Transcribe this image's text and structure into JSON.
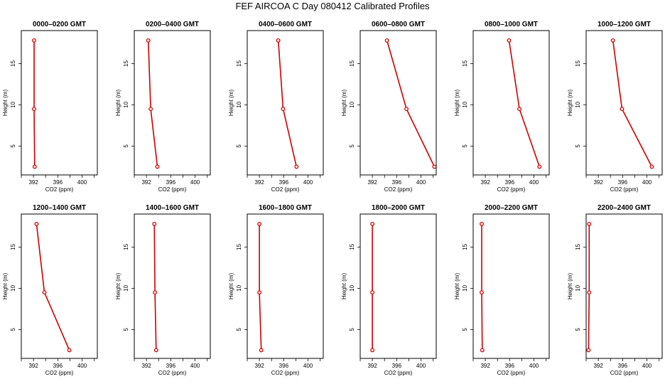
{
  "title": "FEF AIRCOA C  Day 080412  Calibrated Profiles",
  "colors": {
    "profile": "#cc0000",
    "axis": "#000000"
  },
  "chart_data": [
    {
      "type": "line",
      "title": "0000–0200 GMT",
      "xlabel": "CO2 (ppm)",
      "ylabel": "Height (m)",
      "xlim": [
        390,
        402.5
      ],
      "ylim": [
        1.5,
        19
      ],
      "xticks": [
        392,
        396,
        400
      ],
      "yticks": [
        5,
        10,
        15
      ],
      "x": [
        392.1,
        392.1,
        392.2
      ],
      "y": [
        17.8,
        9.5,
        2.5
      ]
    },
    {
      "type": "line",
      "title": "0200–0400 GMT",
      "xlabel": "CO2 (ppm)",
      "ylabel": "Height (m)",
      "xlim": [
        390,
        402.5
      ],
      "ylim": [
        1.5,
        19
      ],
      "xticks": [
        392,
        396,
        400
      ],
      "yticks": [
        5,
        10,
        15
      ],
      "x": [
        392.3,
        392.7,
        393.8
      ],
      "y": [
        17.8,
        9.5,
        2.5
      ]
    },
    {
      "type": "line",
      "title": "0400–0600 GMT",
      "xlabel": "CO2 (ppm)",
      "ylabel": "Height (m)",
      "xlim": [
        390,
        402.5
      ],
      "ylim": [
        1.5,
        19
      ],
      "xticks": [
        392,
        396,
        400
      ],
      "yticks": [
        5,
        10,
        15
      ],
      "x": [
        395.1,
        395.9,
        398.1
      ],
      "y": [
        17.8,
        9.5,
        2.5
      ]
    },
    {
      "type": "line",
      "title": "0600–0800 GMT",
      "xlabel": "CO2 (ppm)",
      "ylabel": "Height (m)",
      "xlim": [
        390,
        402.5
      ],
      "ylim": [
        1.5,
        19
      ],
      "xticks": [
        392,
        396,
        400
      ],
      "yticks": [
        5,
        10,
        15
      ],
      "x": [
        394.4,
        397.6,
        402.2
      ],
      "y": [
        17.8,
        9.5,
        2.5
      ]
    },
    {
      "type": "line",
      "title": "0800–1000 GMT",
      "xlabel": "CO2 (ppm)",
      "ylabel": "Height (m)",
      "xlim": [
        390,
        402.5
      ],
      "ylim": [
        1.5,
        19
      ],
      "xticks": [
        392,
        396,
        400
      ],
      "yticks": [
        5,
        10,
        15
      ],
      "x": [
        395.9,
        397.6,
        400.9
      ],
      "y": [
        17.8,
        9.5,
        2.5
      ]
    },
    {
      "type": "line",
      "title": "1000–1200 GMT",
      "xlabel": "CO2 (ppm)",
      "ylabel": "Height (m)",
      "xlim": [
        390,
        402.5
      ],
      "ylim": [
        1.5,
        19
      ],
      "xticks": [
        392,
        396,
        400
      ],
      "yticks": [
        5,
        10,
        15
      ],
      "x": [
        394.4,
        395.9,
        400.8
      ],
      "y": [
        17.8,
        9.5,
        2.5
      ]
    },
    {
      "type": "line",
      "title": "1200–1400 GMT",
      "xlabel": "CO2 (ppm)",
      "ylabel": "Height (m)",
      "xlim": [
        390,
        402.5
      ],
      "ylim": [
        1.5,
        19
      ],
      "xticks": [
        392,
        396,
        400
      ],
      "yticks": [
        5,
        10,
        15
      ],
      "x": [
        392.5,
        393.8,
        397.9
      ],
      "y": [
        17.8,
        9.5,
        2.5
      ]
    },
    {
      "type": "line",
      "title": "1400–1600 GMT",
      "xlabel": "CO2 (ppm)",
      "ylabel": "Height (m)",
      "xlim": [
        390,
        402.5
      ],
      "ylim": [
        1.5,
        19
      ],
      "xticks": [
        392,
        396,
        400
      ],
      "yticks": [
        5,
        10,
        15
      ],
      "x": [
        393.3,
        393.4,
        393.6
      ],
      "y": [
        17.8,
        9.5,
        2.5
      ]
    },
    {
      "type": "line",
      "title": "1600–1800 GMT",
      "xlabel": "CO2 (ppm)",
      "ylabel": "Height (m)",
      "xlim": [
        390,
        402.5
      ],
      "ylim": [
        1.5,
        19
      ],
      "xticks": [
        392,
        396,
        400
      ],
      "yticks": [
        5,
        10,
        15
      ],
      "x": [
        392.0,
        392.0,
        392.3
      ],
      "y": [
        17.8,
        9.5,
        2.5
      ]
    },
    {
      "type": "line",
      "title": "1800–2000 GMT",
      "xlabel": "CO2 (ppm)",
      "ylabel": "Height (m)",
      "xlim": [
        390,
        402.5
      ],
      "ylim": [
        1.5,
        19
      ],
      "xticks": [
        392,
        396,
        400
      ],
      "yticks": [
        5,
        10,
        15
      ],
      "x": [
        392.0,
        392.0,
        392.0
      ],
      "y": [
        17.8,
        9.5,
        2.5
      ]
    },
    {
      "type": "line",
      "title": "2000–2200 GMT",
      "xlabel": "CO2 (ppm)",
      "ylabel": "Height (m)",
      "xlim": [
        390,
        402.5
      ],
      "ylim": [
        1.5,
        19
      ],
      "xticks": [
        392,
        396,
        400
      ],
      "yticks": [
        5,
        10,
        15
      ],
      "x": [
        391.4,
        391.4,
        391.5
      ],
      "y": [
        17.8,
        9.5,
        2.5
      ]
    },
    {
      "type": "line",
      "title": "2200–2400 GMT",
      "xlabel": "CO2 (ppm)",
      "ylabel": "Height (m)",
      "xlim": [
        390,
        402.5
      ],
      "ylim": [
        1.5,
        19
      ],
      "xticks": [
        392,
        396,
        400
      ],
      "yticks": [
        5,
        10,
        15
      ],
      "x": [
        390.5,
        390.5,
        390.4
      ],
      "y": [
        17.8,
        9.5,
        2.5
      ]
    }
  ]
}
